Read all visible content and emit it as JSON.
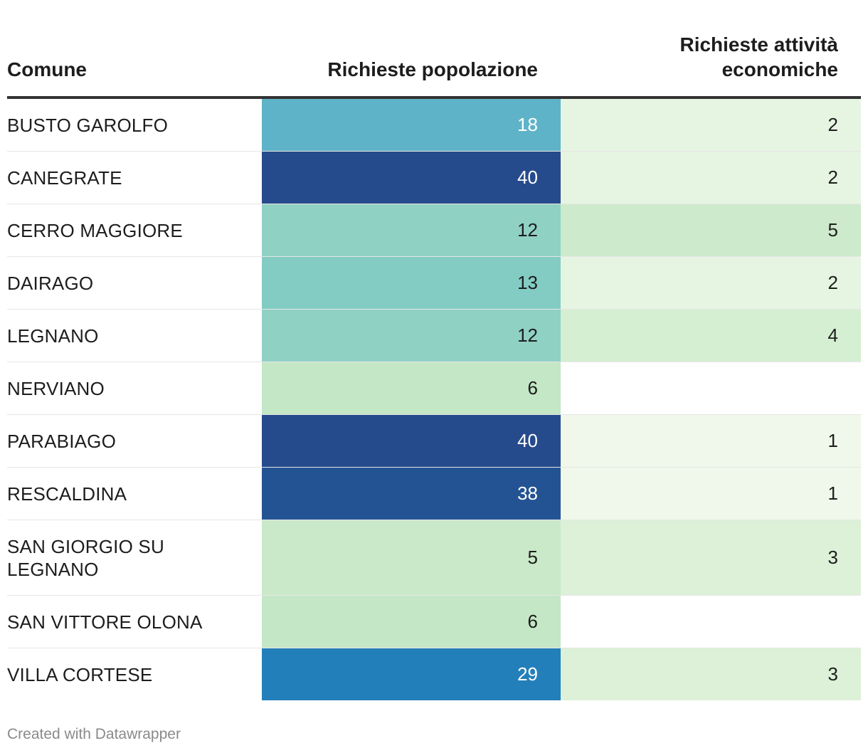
{
  "header": {
    "comune": "Comune",
    "popolazione": "Richieste popolazione",
    "attivita_line1": "Richieste attività",
    "attivita_line2": "economiche"
  },
  "chart_data": {
    "type": "table",
    "columns": [
      "Comune",
      "Richieste popolazione",
      "Richieste attività economiche"
    ],
    "rows": [
      {
        "comune": "BUSTO GAROLFO",
        "popolazione": "18",
        "attivita": "2",
        "pop_color": "#5fb3c8",
        "att_color": "#e6f5e1",
        "pop_text": "#ffffff"
      },
      {
        "comune": "CANEGRATE",
        "popolazione": "40",
        "attivita": "2",
        "pop_color": "#264b8c",
        "att_color": "#e6f5e1",
        "pop_text": "#ffffff"
      },
      {
        "comune": "CERRO MAGGIORE",
        "popolazione": "12",
        "attivita": "5",
        "pop_color": "#8fd1c3",
        "att_color": "#cdebcc",
        "pop_text": "#1d1d1d"
      },
      {
        "comune": "DAIRAGO",
        "popolazione": "13",
        "attivita": "2",
        "pop_color": "#83ccc3",
        "att_color": "#e6f5e1",
        "pop_text": "#1d1d1d"
      },
      {
        "comune": "LEGNANO",
        "popolazione": "12",
        "attivita": "4",
        "pop_color": "#8fd1c3",
        "att_color": "#d5efd2",
        "pop_text": "#1d1d1d"
      },
      {
        "comune": "NERVIANO",
        "popolazione": "6",
        "attivita": "",
        "pop_color": "#c4e7c6",
        "att_color": "#ffffff",
        "pop_text": "#1d1d1d"
      },
      {
        "comune": "PARABIAGO",
        "popolazione": "40",
        "attivita": "1",
        "pop_color": "#264b8c",
        "att_color": "#eff8ea",
        "pop_text": "#ffffff"
      },
      {
        "comune": "RESCALDINA",
        "popolazione": "38",
        "attivita": "1",
        "pop_color": "#245394",
        "att_color": "#eff8ea",
        "pop_text": "#ffffff"
      },
      {
        "comune": "SAN GIORGIO SU LEGNANO",
        "popolazione": "5",
        "attivita": "3",
        "pop_color": "#c9e9c8",
        "att_color": "#dcf1d8",
        "pop_text": "#1d1d1d",
        "tall": true
      },
      {
        "comune": "SAN VITTORE OLONA",
        "popolazione": "6",
        "attivita": "",
        "pop_color": "#c4e7c6",
        "att_color": "#ffffff",
        "pop_text": "#1d1d1d"
      },
      {
        "comune": "VILLA CORTESE",
        "popolazione": "29",
        "attivita": "3",
        "pop_color": "#237fba",
        "att_color": "#dcf1d8",
        "pop_text": "#ffffff"
      }
    ]
  },
  "footer": {
    "credit": "Created with Datawrapper"
  }
}
